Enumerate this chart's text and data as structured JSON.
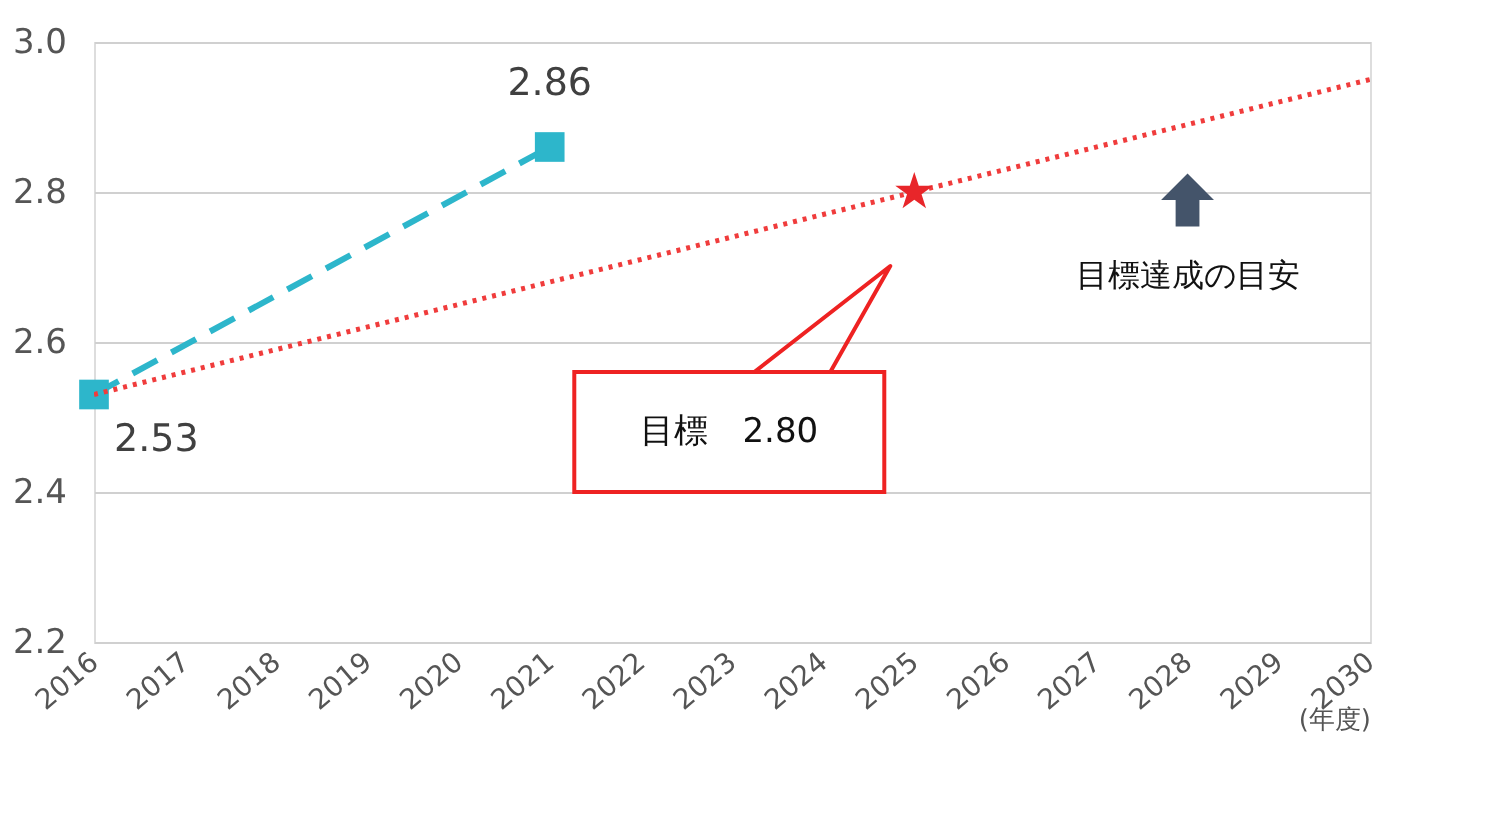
{
  "chart_data": {
    "type": "line",
    "xlabel": "(年度)",
    "xlim": [
      2016,
      2030
    ],
    "xticks": [
      2016,
      2017,
      2018,
      2019,
      2020,
      2021,
      2022,
      2023,
      2024,
      2025,
      2026,
      2027,
      2028,
      2029,
      2030
    ],
    "ylim": [
      2.2,
      3.0
    ],
    "yticks": [
      2.2,
      2.4,
      2.6,
      2.8,
      {
        "value": 3.0,
        "label": "3.0"
      }
    ],
    "grid": "y",
    "series": [
      {
        "color": "#2db6cb",
        "x": [
          2016,
          2021
        ],
        "values": [
          2.53,
          2.86
        ],
        "marker": "square",
        "line_style": "dashed",
        "value_labels": [
          "2.53",
          "2.86"
        ]
      },
      {
        "color": "#f03c3c",
        "x": [
          2016,
          2030
        ],
        "values": [
          2.53,
          2.95
        ],
        "marker": "none",
        "line_style": "dotted"
      },
      {
        "type": "scatter",
        "color": "#e8262a",
        "x": [
          2025
        ],
        "values": [
          2.8
        ],
        "marker": "star"
      }
    ],
    "annotations": [
      "目標　2.80",
      "目標達成の目安"
    ]
  }
}
